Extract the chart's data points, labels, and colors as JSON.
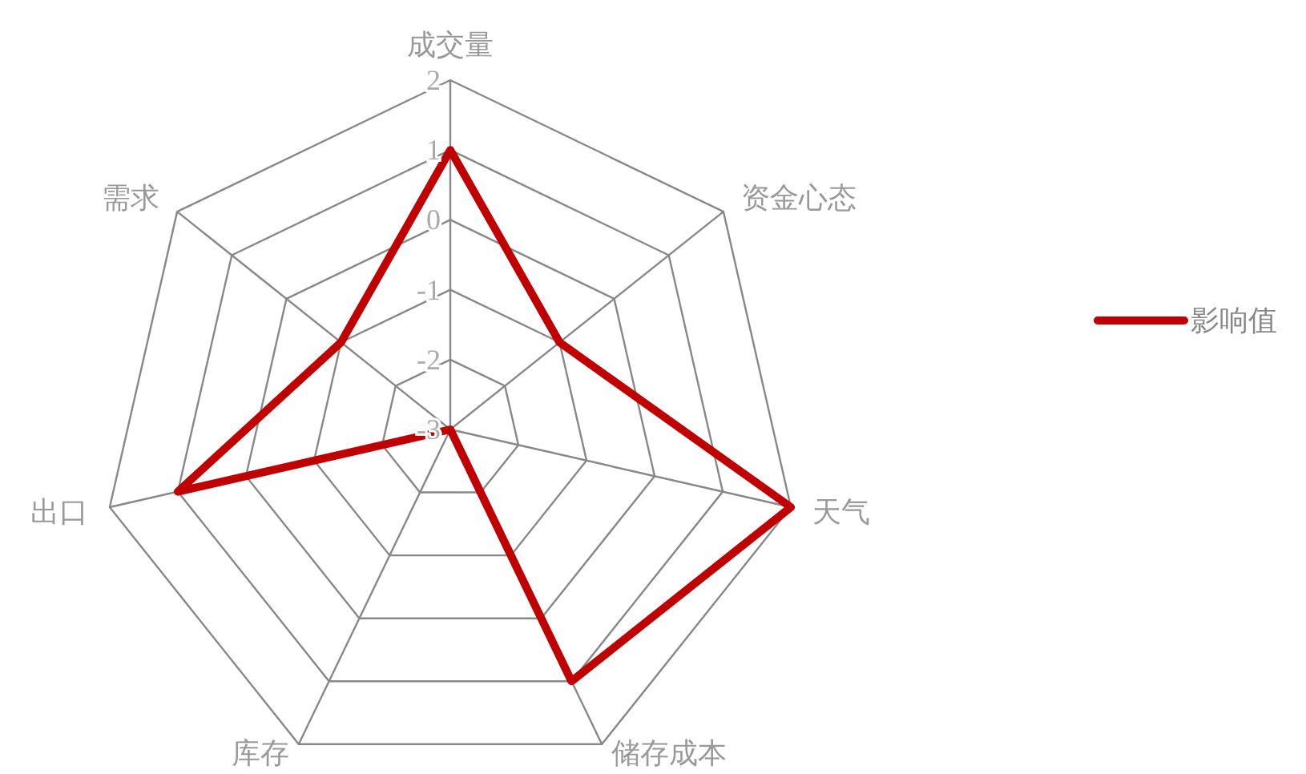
{
  "chart_data": {
    "type": "radar",
    "categories": [
      "成交量",
      "资金心态",
      "天气",
      "储存成本",
      "库存",
      "出口",
      "需求"
    ],
    "series": [
      {
        "name": "影响值",
        "color": "#c00000",
        "values": [
          1,
          -1,
          2,
          1,
          -3,
          1,
          -1
        ]
      }
    ],
    "ylim": [
      -3,
      2
    ],
    "yticks": [
      -3,
      -2,
      -1,
      0,
      1,
      2
    ],
    "grid": true,
    "legend": "right"
  }
}
